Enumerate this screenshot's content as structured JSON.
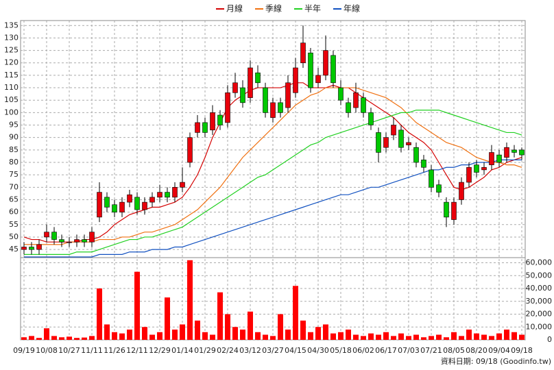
{
  "chart_data": {
    "type": "candlestick",
    "categories": [
      "09/19",
      null,
      null,
      "10/08",
      null,
      null,
      "10/27",
      null,
      null,
      "11/11",
      null,
      null,
      "11/26",
      null,
      null,
      "12/11",
      null,
      null,
      "12/29",
      null,
      null,
      "01/14",
      null,
      null,
      "01/29",
      null,
      null,
      "02/24",
      null,
      null,
      "03/12",
      null,
      null,
      "03/27",
      null,
      null,
      "04/15",
      null,
      null,
      "04/30",
      null,
      null,
      "05/18",
      null,
      null,
      "06/02",
      null,
      null,
      "06/17",
      null,
      null,
      "07/03",
      null,
      null,
      "07/21",
      null,
      null,
      "08/05",
      null,
      null,
      "08/20",
      null,
      null,
      "09/04",
      null,
      null,
      "09/18"
    ],
    "open": [
      45,
      46,
      45,
      50,
      52,
      49,
      48,
      48,
      49,
      48,
      58,
      66,
      63,
      60,
      64,
      66,
      61,
      64,
      66,
      68,
      66,
      70,
      80,
      92,
      96,
      93,
      99,
      96,
      108,
      110,
      106,
      116,
      110,
      98,
      104,
      102,
      108,
      120,
      124,
      112,
      115,
      123,
      110,
      104,
      102,
      106,
      100,
      92,
      86,
      91,
      93,
      87,
      86,
      81,
      77,
      71,
      64,
      57,
      65,
      72,
      79,
      77,
      79,
      83,
      82,
      85,
      85
    ],
    "high": [
      48,
      48,
      49,
      55,
      54,
      51,
      50,
      51,
      51,
      54,
      72,
      68,
      65,
      66,
      69,
      68,
      66,
      68,
      71,
      70,
      72,
      78,
      92,
      99,
      98,
      103,
      101,
      111,
      116,
      113,
      121,
      119,
      112,
      106,
      106,
      115,
      122,
      135,
      126,
      118,
      131,
      125,
      113,
      106,
      112,
      108,
      102,
      94,
      92,
      98,
      95,
      90,
      88,
      83,
      79,
      73,
      66,
      66,
      74,
      80,
      81,
      80,
      87,
      85,
      88,
      87,
      86
    ],
    "low": [
      43,
      43,
      43,
      48,
      47,
      46,
      46,
      46,
      46,
      46,
      56,
      60,
      58,
      58,
      62,
      59,
      59,
      62,
      64,
      64,
      64,
      68,
      78,
      90,
      90,
      91,
      93,
      94,
      106,
      102,
      104,
      110,
      98,
      96,
      98,
      100,
      106,
      118,
      108,
      110,
      113,
      110,
      103,
      98,
      100,
      98,
      93,
      80,
      84,
      89,
      84,
      85,
      78,
      76,
      68,
      66,
      54,
      55,
      63,
      70,
      74,
      75,
      77,
      78,
      80,
      82,
      81
    ],
    "close": [
      46,
      45,
      47,
      52,
      49,
      48,
      48,
      49,
      48,
      52,
      68,
      62,
      60,
      64,
      67,
      61,
      64,
      66,
      68,
      66,
      70,
      72,
      90,
      96,
      92,
      100,
      95,
      108,
      112,
      104,
      118,
      112,
      100,
      104,
      100,
      112,
      118,
      128,
      110,
      115,
      125,
      112,
      105,
      100,
      108,
      100,
      95,
      84,
      90,
      95,
      86,
      88,
      80,
      78,
      70,
      68,
      58,
      64,
      72,
      78,
      76,
      78,
      84,
      80,
      86,
      84,
      83
    ],
    "up_color": "#e8000b",
    "down_color": "#00c800",
    "series": [
      {
        "name": "月線",
        "color": "#d40000",
        "values": [
          50,
          49,
          49,
          48,
          48,
          48,
          48,
          48,
          49,
          49,
          50,
          52,
          55,
          57,
          59,
          60,
          61,
          62,
          62,
          63,
          64,
          66,
          70,
          75,
          82,
          90,
          96,
          102,
          105,
          107,
          109,
          110,
          110,
          110,
          110,
          111,
          112,
          112,
          110,
          110,
          110,
          111,
          110,
          110,
          108,
          106,
          104,
          102,
          100,
          98,
          95,
          92,
          90,
          88,
          85,
          80,
          75,
          70,
          69,
          70,
          72,
          74,
          77,
          78,
          80,
          81,
          82
        ]
      },
      {
        "name": "季線",
        "color": "#f07010",
        "values": [
          47,
          47,
          47,
          47,
          47,
          47,
          48,
          48,
          48,
          48,
          49,
          49,
          49,
          50,
          50,
          51,
          52,
          52,
          53,
          54,
          55,
          57,
          59,
          61,
          64,
          67,
          70,
          74,
          78,
          82,
          85,
          88,
          91,
          94,
          97,
          100,
          103,
          105,
          107,
          108,
          110,
          110,
          110,
          110,
          110,
          109,
          108,
          107,
          106,
          104,
          102,
          99,
          96,
          94,
          92,
          90,
          88,
          87,
          86,
          84,
          82,
          81,
          80,
          80,
          79,
          79,
          78
        ]
      },
      {
        "name": "半年",
        "color": "#20d020",
        "values": [
          43,
          43,
          43,
          43,
          43,
          43,
          43,
          44,
          44,
          44,
          45,
          46,
          47,
          48,
          49,
          49,
          50,
          50,
          51,
          52,
          53,
          54,
          56,
          58,
          60,
          62,
          64,
          66,
          68,
          70,
          72,
          74,
          75,
          77,
          79,
          81,
          83,
          85,
          87,
          88,
          90,
          91,
          92,
          93,
          94,
          95,
          96,
          97,
          98,
          99,
          100,
          100,
          101,
          101,
          101,
          101,
          100,
          99,
          98,
          97,
          96,
          95,
          94,
          93,
          92,
          92,
          91
        ]
      },
      {
        "name": "年線",
        "color": "#1050c0",
        "values": [
          42,
          42,
          42,
          42,
          42,
          42,
          42,
          42,
          42,
          42,
          43,
          43,
          43,
          43,
          44,
          44,
          44,
          45,
          45,
          45,
          46,
          46,
          47,
          48,
          49,
          50,
          51,
          52,
          53,
          54,
          55,
          56,
          57,
          58,
          59,
          60,
          61,
          62,
          63,
          64,
          65,
          66,
          67,
          67,
          68,
          69,
          70,
          70,
          71,
          72,
          73,
          74,
          75,
          76,
          77,
          77,
          78,
          78,
          79,
          79,
          80,
          80,
          80,
          81,
          81,
          81,
          81
        ]
      }
    ],
    "ylim": [
      42,
      137
    ],
    "yticks": [
      45,
      50,
      55,
      60,
      65,
      70,
      75,
      80,
      85,
      90,
      95,
      100,
      105,
      110,
      115,
      120,
      125,
      130,
      135
    ],
    "grid": true,
    "volume": {
      "color": "#ff0000",
      "values": [
        2000,
        3000,
        1500,
        9000,
        3000,
        2000,
        2500,
        1500,
        1800,
        3000,
        40000,
        12000,
        6000,
        5000,
        8000,
        53000,
        10000,
        4000,
        6000,
        33000,
        8000,
        12000,
        62000,
        15000,
        6000,
        4000,
        37000,
        20000,
        10000,
        8000,
        22000,
        6000,
        4000,
        3000,
        20000,
        8000,
        42000,
        15000,
        6000,
        10000,
        12000,
        5000,
        6000,
        8000,
        4000,
        3000,
        5000,
        4000,
        6000,
        3000,
        5000,
        3000,
        4000,
        2000,
        3000,
        4000,
        2000,
        6000,
        3000,
        8000,
        5000,
        4000,
        3000,
        5000,
        8000,
        6000,
        4000
      ],
      "ylim": [
        0,
        64000
      ],
      "yticks": [
        0,
        {
          "value": 10000,
          "label": "10,000"
        },
        {
          "value": 20000,
          "label": "20,000"
        },
        {
          "value": 30000,
          "label": "30,000"
        },
        {
          "value": 40000,
          "label": "40,000"
        },
        {
          "value": 50000,
          "label": "50,000"
        },
        {
          "value": 60000,
          "label": "60,000"
        }
      ]
    },
    "source": "資料日期: 09/18 (Goodinfo.tw)"
  }
}
